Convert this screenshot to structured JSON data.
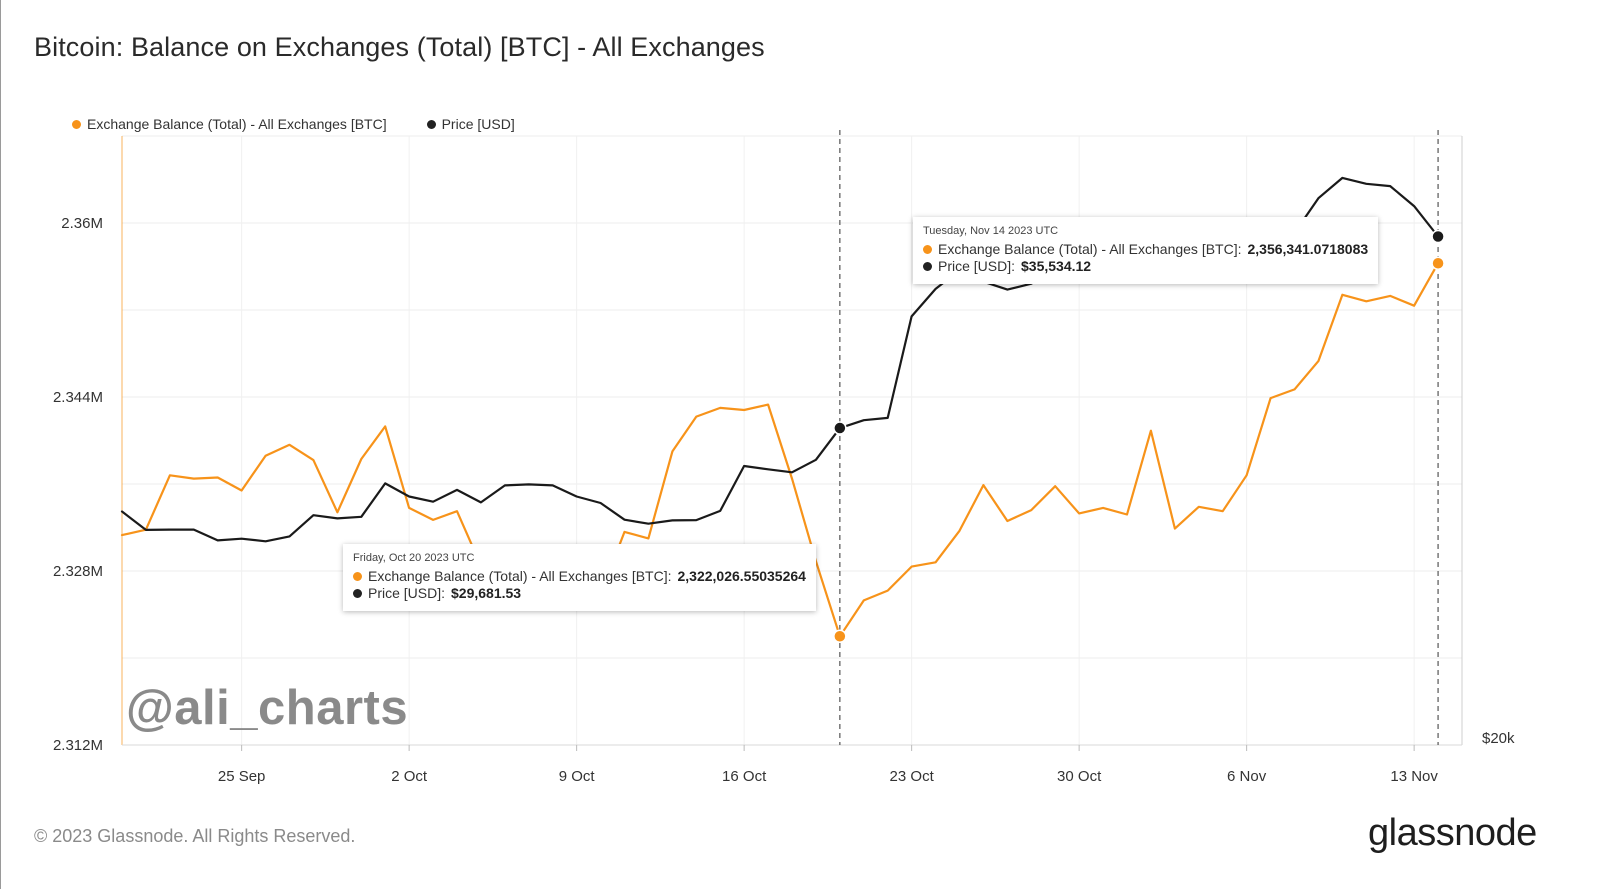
{
  "title": "Bitcoin: Balance on Exchanges (Total) [BTC] - All Exchanges",
  "legend": {
    "items": [
      {
        "label": "Exchange Balance (Total) - All Exchanges [BTC]",
        "color": "#f7931a"
      },
      {
        "label": "Price [USD]",
        "color": "#222222"
      }
    ]
  },
  "tooltips": [
    {
      "date": "Friday, Oct 20 2023 UTC",
      "balance_label": "Exchange Balance (Total) - All Exchanges [BTC]:",
      "balance_value": "2,322,026.55035264",
      "price_label": "Price [USD]:",
      "price_value": "$29,681.53"
    },
    {
      "date": "Tuesday, Nov 14 2023 UTC",
      "balance_label": "Exchange Balance (Total) - All Exchanges [BTC]:",
      "balance_value": "2,356,341.0718083",
      "price_label": "Price [USD]:",
      "price_value": "$35,534.12"
    }
  ],
  "watermark": "@ali_charts",
  "footer": "© 2023 Glassnode. All Rights Reserved.",
  "brand": "glassnode",
  "chart_data": {
    "type": "line",
    "y_left_ticks": [
      "2.312M",
      "2.328M",
      "2.344M",
      "2.36M"
    ],
    "y_left_tick_values": [
      2312000,
      2328000,
      2344000,
      2360000
    ],
    "y_left_range": [
      2312000,
      2368000
    ],
    "y_right_ticks": [
      "$20k"
    ],
    "x_ticks": [
      "25 Sep",
      "2 Oct",
      "9 Oct",
      "16 Oct",
      "23 Oct",
      "30 Oct",
      "6 Nov",
      "13 Nov"
    ],
    "x_tick_dates": [
      "2023-09-25",
      "2023-10-02",
      "2023-10-09",
      "2023-10-16",
      "2023-10-23",
      "2023-10-30",
      "2023-11-06",
      "2023-11-13"
    ],
    "x_range": [
      "2023-09-20",
      "2023-11-15"
    ],
    "grid": true,
    "legend_position": "top-left",
    "markers": [
      "2023-10-20",
      "2023-11-14"
    ],
    "series": [
      {
        "name": "Exchange Balance (Total) - All Exchanges [BTC]",
        "color": "#f7931a",
        "axis": "left",
        "x": [
          "2023-09-20",
          "2023-09-21",
          "2023-09-22",
          "2023-09-23",
          "2023-09-24",
          "2023-09-25",
          "2023-09-26",
          "2023-09-27",
          "2023-09-28",
          "2023-09-29",
          "2023-09-30",
          "2023-10-01",
          "2023-10-02",
          "2023-10-03",
          "2023-10-04",
          "2023-10-05",
          "2023-10-06",
          "2023-10-07",
          "2023-10-08",
          "2023-10-09",
          "2023-10-10",
          "2023-10-11",
          "2023-10-12",
          "2023-10-13",
          "2023-10-14",
          "2023-10-15",
          "2023-10-16",
          "2023-10-17",
          "2023-10-18",
          "2023-10-19",
          "2023-10-20",
          "2023-10-21",
          "2023-10-22",
          "2023-10-23",
          "2023-10-24",
          "2023-10-25",
          "2023-10-26",
          "2023-10-27",
          "2023-10-28",
          "2023-10-29",
          "2023-10-30",
          "2023-10-31",
          "2023-11-01",
          "2023-11-02",
          "2023-11-03",
          "2023-11-04",
          "2023-11-05",
          "2023-11-06",
          "2023-11-07",
          "2023-11-08",
          "2023-11-09",
          "2023-11-10",
          "2023-11-11",
          "2023-11-12",
          "2023-11-13",
          "2023-11-14"
        ],
        "values": [
          2331300,
          2331800,
          2336800,
          2336500,
          2336600,
          2335400,
          2338600,
          2339600,
          2338200,
          2333400,
          2338300,
          2341300,
          2333800,
          2332700,
          2333500,
          2328500,
          2325800,
          2328900,
          2327100,
          2327200,
          2325900,
          2331600,
          2331000,
          2339000,
          2342200,
          2343000,
          2342800,
          2343300,
          2336500,
          2328900,
          2322000,
          2325300,
          2326200,
          2328400,
          2328800,
          2331700,
          2335900,
          2332600,
          2333600,
          2335800,
          2333300,
          2333800,
          2333200,
          2340900,
          2331900,
          2333900,
          2333500,
          2336800,
          2343900,
          2344700,
          2347300,
          2353400,
          2352800,
          2353300,
          2352400,
          2356300
        ]
      },
      {
        "name": "Price [USD]",
        "color": "#1a1a1a",
        "axis": "right",
        "x": [
          "2023-09-20",
          "2023-09-21",
          "2023-09-22",
          "2023-09-23",
          "2023-09-24",
          "2023-09-25",
          "2023-09-26",
          "2023-09-27",
          "2023-09-28",
          "2023-09-29",
          "2023-09-30",
          "2023-10-01",
          "2023-10-02",
          "2023-10-03",
          "2023-10-04",
          "2023-10-05",
          "2023-10-06",
          "2023-10-07",
          "2023-10-08",
          "2023-10-09",
          "2023-10-10",
          "2023-10-11",
          "2023-10-12",
          "2023-10-13",
          "2023-10-14",
          "2023-10-15",
          "2023-10-16",
          "2023-10-17",
          "2023-10-18",
          "2023-10-19",
          "2023-10-20",
          "2023-10-21",
          "2023-10-22",
          "2023-10-23",
          "2023-10-24",
          "2023-10-25",
          "2023-10-26",
          "2023-10-27",
          "2023-10-28",
          "2023-10-29",
          "2023-10-30",
          "2023-10-31",
          "2023-11-01",
          "2023-11-02",
          "2023-11-03",
          "2023-11-04",
          "2023-11-05",
          "2023-11-06",
          "2023-11-07",
          "2023-11-08",
          "2023-11-09",
          "2023-11-10",
          "2023-11-11",
          "2023-11-12",
          "2023-11-13",
          "2023-11-14"
        ],
        "values": [
          27130,
          26570,
          26580,
          26580,
          26250,
          26300,
          26220,
          26370,
          27020,
          26920,
          26970,
          27990,
          27590,
          27430,
          27790,
          27410,
          27930,
          27960,
          27930,
          27590,
          27390,
          26880,
          26760,
          26860,
          26870,
          27150,
          28520,
          28420,
          28330,
          28710,
          29680,
          29920,
          29990,
          33090,
          33930,
          34500,
          34150,
          33910,
          34090,
          34540,
          34500,
          34660,
          35430,
          34940,
          34730,
          35070,
          35040,
          35050,
          35420,
          35640,
          36700,
          37320,
          37140,
          37070,
          36460,
          35530
        ]
      }
    ]
  }
}
